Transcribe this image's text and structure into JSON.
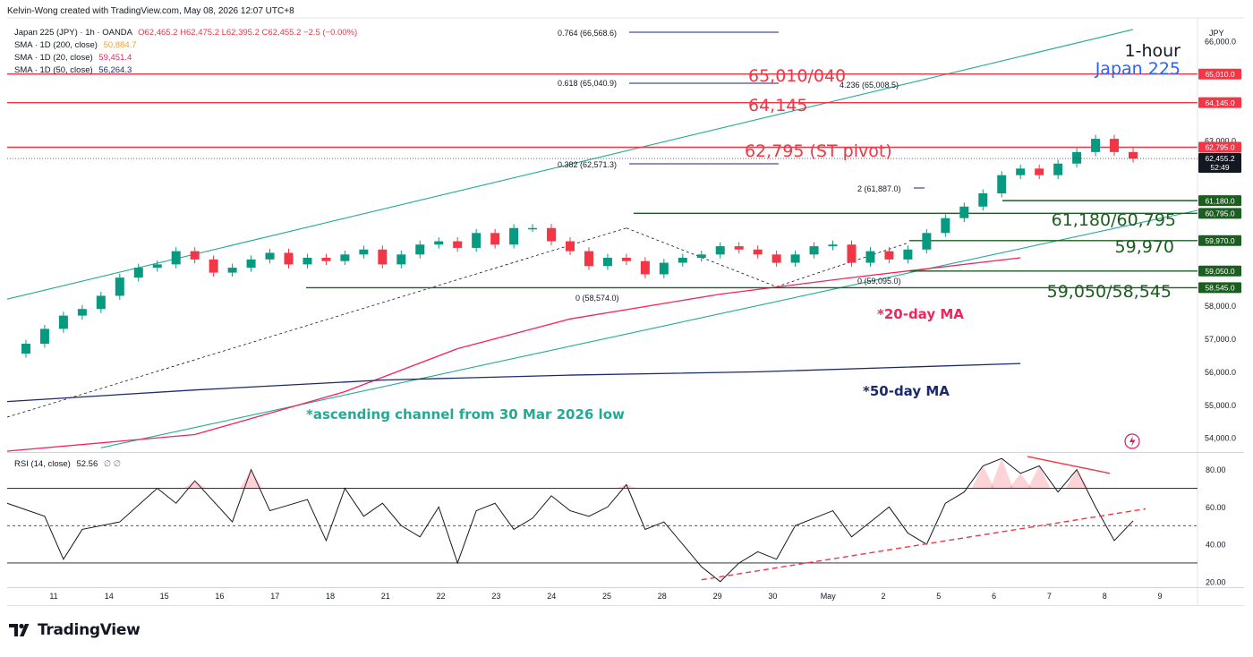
{
  "header": {
    "created_by": "Kelvin-Wong created with TradingView.com, May 08, 2026 12:07 UTC+8",
    "currency": "JPY"
  },
  "legend": {
    "symbol": "Japan 225 (JPY) · 1h · OANDA",
    "ohlc": "O62,465.2  H62,475.2  L62,395.2  C62,455.2  −2.5 (−0.00%)",
    "sma200_label": "SMA · 1D (200, close)",
    "sma200_value": "50,884.7",
    "sma20_label": "SMA · 1D (20, close)",
    "sma20_value": "59,451.4",
    "sma50_label": "SMA · 1D (50, close)",
    "sma50_value": "56,264.3",
    "rsi_label": "RSI (14, close)",
    "rsi_value": "52.56",
    "rsi_extra": "∅ ∅"
  },
  "annotations": {
    "timeframe": "1-hour",
    "instrument": "Japan 225",
    "r3": "65,010/040",
    "r2": "64,145",
    "r1": "62,795 (ST pivot)",
    "s1": "61,180/60,795",
    "s2": "59,970",
    "s3": "59,050/58,545",
    "ma20": "*20-day MA",
    "ma50": "*50-day MA",
    "channel": "*ascending channel from 30 Mar 2026 low",
    "fib_0764": "0.764 (66,568.6)",
    "fib_0618": "0.618 (65,040.9)",
    "fib_4236": "4.236 (65,008.5)",
    "fib_0382": "0.382 (62,571.3)",
    "fib_2": "2 (61,887.0)",
    "fib_0a": "0 (58,574.0)",
    "fib_0b": "0 (59,095.0)"
  },
  "price_tags": {
    "last_price": "62,455.2",
    "countdown": "52:49"
  },
  "footer": {
    "brand": "TradingView"
  },
  "colors": {
    "resistance": "#f23645",
    "support": "#1b5e20",
    "channel": "#22ab94",
    "ma20": "#f7225c",
    "ma50": "#1a2a6c",
    "candle_up": "#089981",
    "candle_down": "#f23645",
    "rsi": "#131722",
    "instrument": "#2962ff"
  },
  "chart_data": [
    {
      "type": "candlestick",
      "title": "Japan 225 (JPY) · 1h · OANDA",
      "x_tick_labels": [
        "11",
        "14",
        "15",
        "16",
        "17",
        "18",
        "21",
        "22",
        "23",
        "24",
        "25",
        "28",
        "29",
        "30",
        "May",
        "2",
        "5",
        "6",
        "7",
        "8",
        "9"
      ],
      "y_tick_labels": [
        "54,000.0",
        "55,000.0",
        "56,000.0",
        "57,000.0",
        "58,000.0",
        "63,000.0",
        "66,000.0"
      ],
      "ylim": [
        53600,
        66600
      ],
      "price_series": [
        [
          0,
          56550
        ],
        [
          1,
          56850
        ],
        [
          2,
          57300
        ],
        [
          3,
          57700
        ],
        [
          4,
          57900
        ],
        [
          5,
          58300
        ],
        [
          6,
          58850
        ],
        [
          7,
          59150
        ],
        [
          8,
          59250
        ],
        [
          9,
          59650
        ],
        [
          10,
          59400
        ],
        [
          11,
          59000
        ],
        [
          12,
          59150
        ],
        [
          13,
          59400
        ],
        [
          14,
          59600
        ],
        [
          15,
          59250
        ],
        [
          16,
          59450
        ],
        [
          17,
          59350
        ],
        [
          18,
          59550
        ],
        [
          19,
          59700
        ],
        [
          20,
          59250
        ],
        [
          21,
          59550
        ],
        [
          22,
          59850
        ],
        [
          23,
          59950
        ],
        [
          24,
          59750
        ],
        [
          25,
          60200
        ],
        [
          26,
          59850
        ],
        [
          27,
          60350
        ],
        [
          28,
          60350
        ],
        [
          29,
          59950
        ],
        [
          30,
          59650
        ],
        [
          31,
          59200
        ],
        [
          32,
          59450
        ],
        [
          33,
          59350
        ],
        [
          34,
          58950
        ],
        [
          35,
          59300
        ],
        [
          36,
          59450
        ],
        [
          37,
          59550
        ],
        [
          38,
          59800
        ],
        [
          39,
          59700
        ],
        [
          40,
          59550
        ],
        [
          41,
          59300
        ],
        [
          42,
          59550
        ],
        [
          43,
          59800
        ],
        [
          44,
          59850
        ],
        [
          45,
          59300
        ],
        [
          46,
          59650
        ],
        [
          47,
          59400
        ],
        [
          48,
          59700
        ],
        [
          49,
          60200
        ],
        [
          50,
          60650
        ],
        [
          51,
          61000
        ],
        [
          52,
          61400
        ],
        [
          53,
          61950
        ],
        [
          54,
          62150
        ],
        [
          55,
          61950
        ],
        [
          56,
          62300
        ],
        [
          57,
          62650
        ],
        [
          58,
          63050
        ],
        [
          59,
          62650
        ],
        [
          60,
          62455
        ]
      ],
      "series": [
        {
          "name": "SMA · 1D (20, close)",
          "values": [
            [
              0,
              53600
            ],
            [
              10,
              54100
            ],
            [
              18,
              55400
            ],
            [
              24,
              56700
            ],
            [
              30,
              57600
            ],
            [
              38,
              58350
            ],
            [
              45,
              58850
            ],
            [
              54,
              59450
            ]
          ]
        },
        {
          "name": "SMA · 1D (50, close)",
          "values": [
            [
              0,
              55100
            ],
            [
              10,
              55450
            ],
            [
              20,
              55750
            ],
            [
              30,
              55900
            ],
            [
              40,
              56000
            ],
            [
              54,
              56250
            ]
          ]
        }
      ],
      "horizontal_levels": [
        65010,
        64145,
        62795,
        61180,
        60795,
        59970,
        59050,
        58545
      ],
      "channel": {
        "upper": [
          [
            0,
            58200
          ],
          [
            60,
            65600
          ]
        ],
        "lower": [
          [
            5,
            53700
          ],
          [
            60,
            60750
          ]
        ]
      }
    },
    {
      "type": "line",
      "title": "RSI (14, close)",
      "y_tick_labels": [
        "20.00",
        "40.00",
        "60.00",
        "80.00"
      ],
      "ylim": [
        18,
        88
      ],
      "bands": [
        30,
        50,
        70
      ],
      "values": [
        [
          0,
          62
        ],
        [
          2,
          55
        ],
        [
          3,
          32
        ],
        [
          4,
          48
        ],
        [
          6,
          52
        ],
        [
          8,
          70
        ],
        [
          9,
          62
        ],
        [
          10,
          74
        ],
        [
          12,
          52
        ],
        [
          13,
          80
        ],
        [
          14,
          58
        ],
        [
          16,
          64
        ],
        [
          17,
          42
        ],
        [
          18,
          70
        ],
        [
          19,
          55
        ],
        [
          20,
          62
        ],
        [
          21,
          50
        ],
        [
          22,
          44
        ],
        [
          23,
          60
        ],
        [
          24,
          30
        ],
        [
          25,
          58
        ],
        [
          26,
          62
        ],
        [
          27,
          48
        ],
        [
          28,
          54
        ],
        [
          29,
          66
        ],
        [
          30,
          58
        ],
        [
          31,
          55
        ],
        [
          32,
          60
        ],
        [
          33,
          72
        ],
        [
          34,
          48
        ],
        [
          35,
          52
        ],
        [
          36,
          40
        ],
        [
          37,
          28
        ],
        [
          38,
          20
        ],
        [
          39,
          30
        ],
        [
          40,
          36
        ],
        [
          41,
          32
        ],
        [
          42,
          50
        ],
        [
          43,
          54
        ],
        [
          44,
          58
        ],
        [
          45,
          44
        ],
        [
          46,
          52
        ],
        [
          47,
          60
        ],
        [
          48,
          46
        ],
        [
          49,
          40
        ],
        [
          50,
          62
        ],
        [
          51,
          68
        ],
        [
          52,
          82
        ],
        [
          53,
          86
        ],
        [
          54,
          78
        ],
        [
          55,
          82
        ],
        [
          56,
          68
        ],
        [
          57,
          80
        ],
        [
          58,
          60
        ],
        [
          59,
          42
        ],
        [
          60,
          52.56
        ]
      ],
      "trendlines": {
        "support": [
          [
            37,
            21
          ],
          [
            60,
            59
          ]
        ],
        "divergence": [
          [
            54,
            87
          ],
          [
            58,
            78
          ]
        ]
      }
    }
  ]
}
